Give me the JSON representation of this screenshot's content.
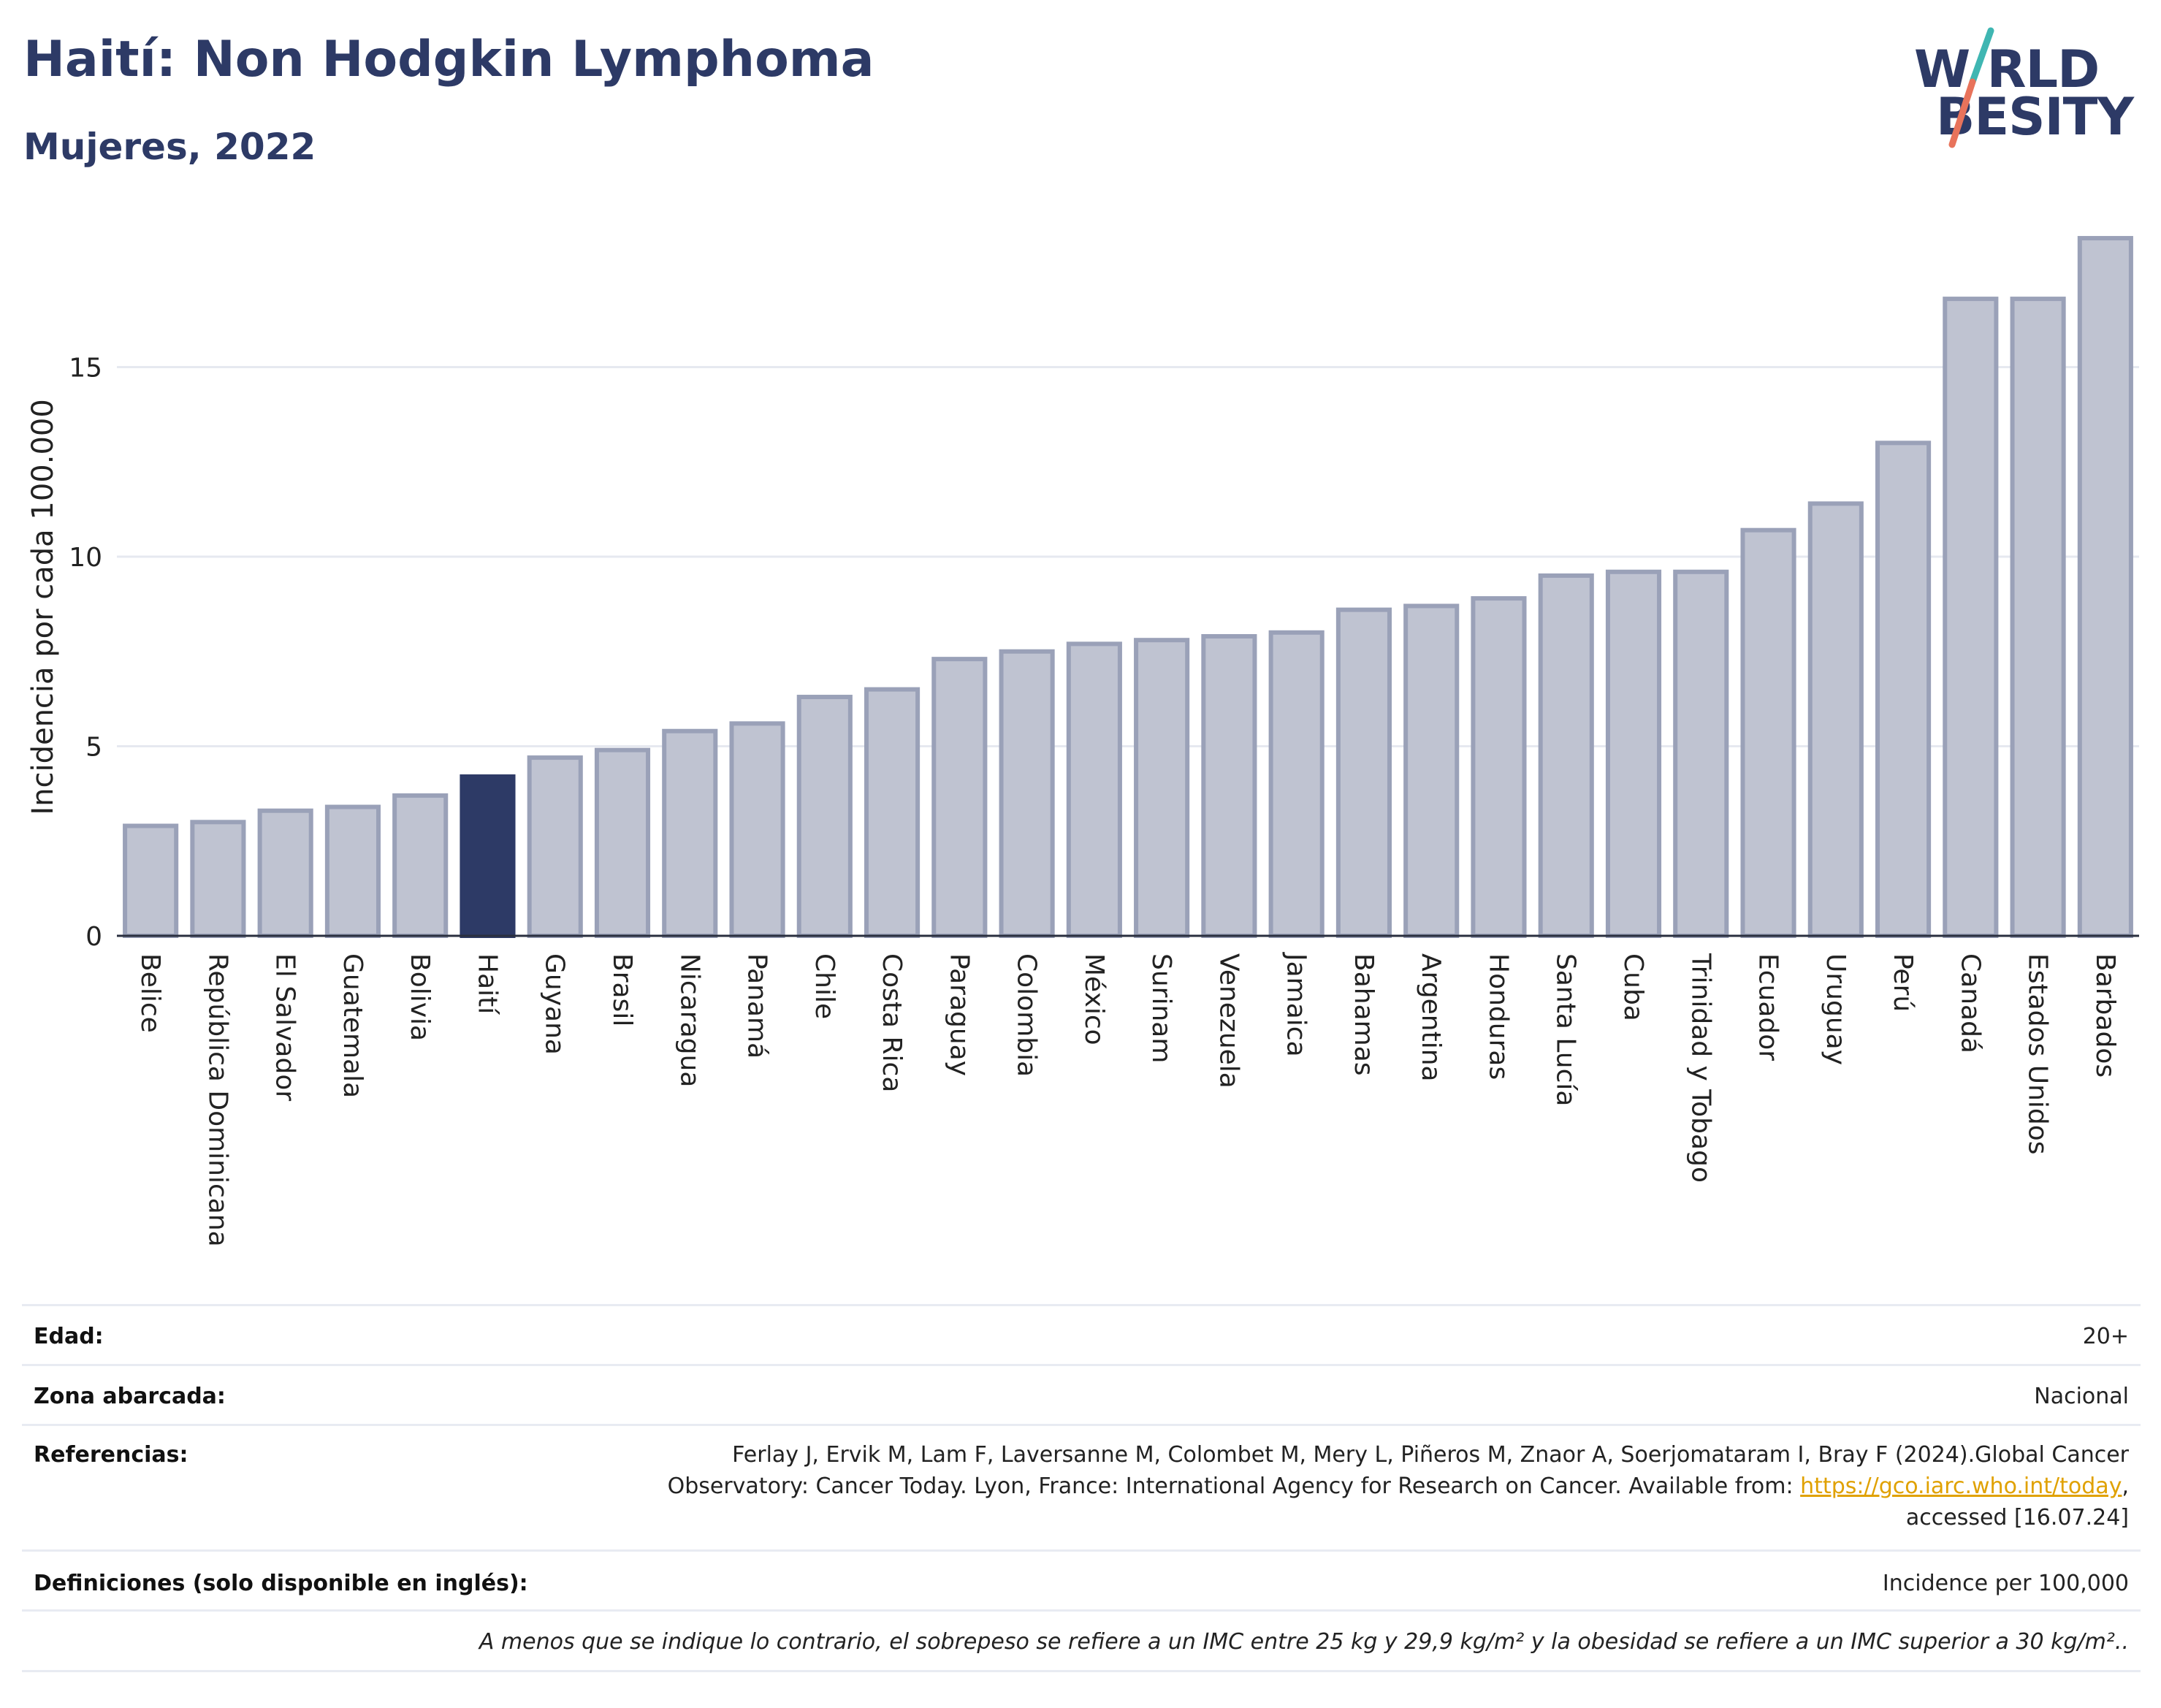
{
  "title": "Haití: Non Hodgkin Lymphoma",
  "subtitle": "Mujeres, 2022",
  "logo": {
    "line1": "W RLD",
    "line2": "BESITY",
    "name": "world-obesity-logo"
  },
  "colors": {
    "highlight": "#2d3a66",
    "bar_fill": "#bfc3d1",
    "bar_stroke": "#9aa1b8",
    "grid": "#e6e9f0",
    "logo_slash_top": "#3fb6b2",
    "logo_slash_bottom": "#e8735b"
  },
  "chart_data": {
    "type": "bar",
    "ylabel": "Incidencia por cada 100.000",
    "xlabel": "",
    "ylim": [
      0,
      18.5
    ],
    "yticks": [
      0,
      5,
      10,
      15
    ],
    "grid": true,
    "highlight_category": "Haití",
    "categories": [
      "Belice",
      "República Dominicana",
      "El Salvador",
      "Guatemala",
      "Bolivia",
      "Haití",
      "Guyana",
      "Brasil",
      "Nicaragua",
      "Panamá",
      "Chile",
      "Costa Rica",
      "Paraguay",
      "Colombia",
      "México",
      "Surinam",
      "Venezuela",
      "Jamaica",
      "Bahamas",
      "Argentina",
      "Honduras",
      "Santa Lucía",
      "Cuba",
      "Trinidad y Tobago",
      "Ecuador",
      "Uruguay",
      "Perú",
      "Canadá",
      "Estados Unidos",
      "Barbados"
    ],
    "values": [
      2.9,
      3.0,
      3.3,
      3.4,
      3.7,
      4.2,
      4.7,
      4.9,
      5.4,
      5.6,
      6.3,
      6.5,
      7.3,
      7.5,
      7.7,
      7.8,
      7.9,
      8.0,
      8.6,
      8.7,
      8.9,
      9.5,
      9.6,
      9.6,
      10.7,
      11.4,
      13.0,
      16.8,
      16.8,
      18.4
    ]
  },
  "meta": {
    "age_label": "Edad:",
    "age_value": "20+",
    "area_label": "Zona abarcada:",
    "area_value": "Nacional",
    "refs_label": "Referencias:",
    "refs_line1": "Ferlay J, Ervik M, Lam F, Laversanne M, Colombet M, Mery L, Piñeros M, Znaor A, Soerjomataram I, Bray F (2024).Global Cancer",
    "refs_line2_pre": "Observatory: Cancer Today. Lyon, France: International Agency for Research on Cancer. Available from: ",
    "refs_link": "https://gco.iarc.who.int/today",
    "refs_line2_post": ",",
    "refs_line3": "accessed [16.07.24]",
    "defs_label": "Definiciones (solo disponible en inglés):",
    "defs_value": "Incidence per 100,000",
    "footnote": "A menos que se indique lo contrario, el sobrepeso se refiere a un IMC entre 25 kg y 29,9 kg/m² y la obesidad se refiere a un IMC superior a 30 kg/m².."
  }
}
